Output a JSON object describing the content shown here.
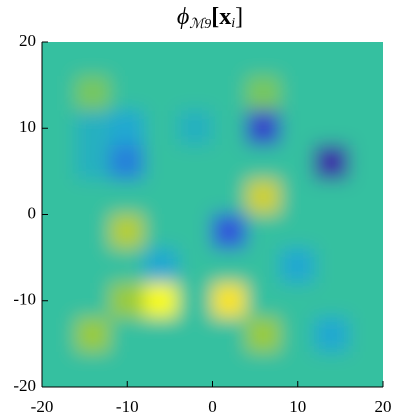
{
  "chart_data": {
    "type": "heatmap",
    "title_parts": [
      "ϕ",
      "ℳ9",
      "[x",
      "i",
      "]"
    ],
    "xlim": [
      -20,
      20
    ],
    "ylim": [
      -20,
      20
    ],
    "xticks": [
      -20,
      -10,
      0,
      10,
      20
    ],
    "yticks": [
      -20,
      -10,
      0,
      10,
      20
    ],
    "clim": [
      -1,
      1
    ],
    "colormap": [
      "#3e26a8",
      "#2f5ae0",
      "#1fa5d6",
      "#35c0a0",
      "#a5cc30",
      "#f9d430",
      "#f9fb0e"
    ],
    "values": [
      [
        0,
        0,
        0,
        0,
        0,
        0,
        0,
        0,
        0,
        0
      ],
      [
        0,
        0.2,
        0,
        0,
        0,
        0,
        0.2,
        0,
        0,
        0
      ],
      [
        0,
        -0.2,
        -0.3,
        0,
        -0.2,
        0,
        -0.8,
        0,
        0,
        0
      ],
      [
        0,
        -0.2,
        -0.5,
        0,
        0,
        0,
        0,
        0,
        -1,
        0
      ],
      [
        0,
        0,
        0,
        0,
        0,
        0,
        0.5,
        0,
        0,
        0
      ],
      [
        0,
        0,
        0.4,
        0,
        0,
        -0.7,
        0,
        0,
        0,
        0
      ],
      [
        0,
        0,
        0,
        -0.3,
        0,
        0,
        0,
        -0.3,
        0,
        0
      ],
      [
        0,
        0,
        0.3,
        1,
        0,
        0.8,
        0,
        0,
        0,
        0
      ],
      [
        0,
        0.3,
        0,
        0,
        0,
        0,
        0.3,
        0,
        -0.3,
        0
      ],
      [
        0,
        0,
        0,
        0,
        0,
        0,
        0,
        0,
        0,
        0
      ]
    ]
  }
}
